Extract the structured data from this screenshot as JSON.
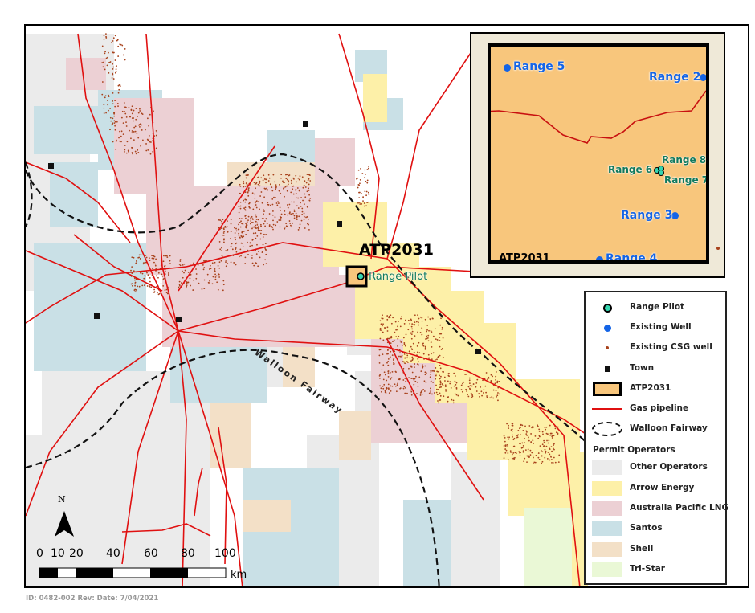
{
  "map": {
    "atp_label": "ATP2031",
    "range_pilot_label": "Range Pilot",
    "fairway_label": "Walloon Fairway",
    "north_label": "N",
    "scale": {
      "ticks": [
        "0",
        "10",
        "20",
        "40",
        "60",
        "80",
        "100"
      ],
      "unit": "km"
    }
  },
  "inset": {
    "title": "ATP2031",
    "existing_wells": [
      "Range 5",
      "Range 2",
      "Range 3",
      "Range 4"
    ],
    "pilot_wells": [
      "Range 6",
      "Range 8",
      "Range 7"
    ]
  },
  "legend": {
    "items": [
      "Range Pilot",
      "Existing Well",
      "Existing CSG well",
      "Town",
      "ATP2031",
      "Gas pipeline",
      "Walloon Fairway"
    ],
    "operators_title": "Permit Operators",
    "operators": [
      {
        "name": "Other Operators",
        "color": "#ebebeb"
      },
      {
        "name": "Arrow Energy",
        "color": "#fdf0a8"
      },
      {
        "name": "Australia Pacific LNG",
        "color": "#ecd0d4"
      },
      {
        "name": "Santos",
        "color": "#c9e0e6"
      },
      {
        "name": "Shell",
        "color": "#f3e0c7"
      },
      {
        "name": "Tri-Star",
        "color": "#eaf8d6"
      }
    ]
  },
  "colors": {
    "pipeline": "#e01010",
    "atp": "#f8c67c",
    "existing_well": "#1464e6",
    "pilot": "#35d6b0",
    "csg": "#a8421c"
  },
  "footer": "ID: 0482-002 Rev:  Date: 7/04/2021"
}
